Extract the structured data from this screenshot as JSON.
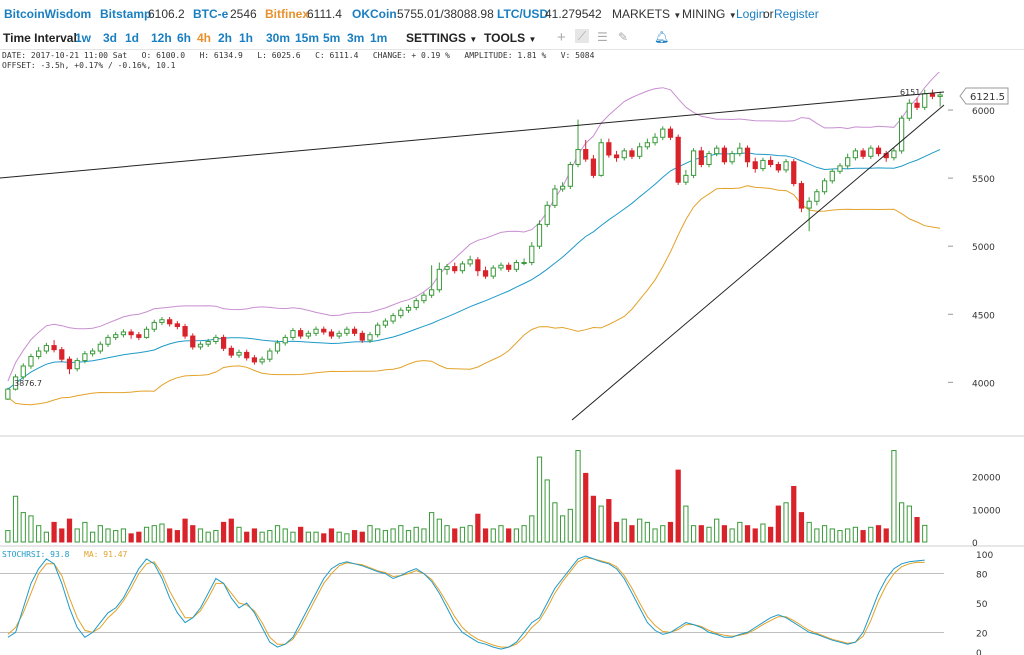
{
  "topbar": {
    "logo": "BitcoinWisdom",
    "markets": [
      {
        "name": "Bitstamp",
        "value": "6106.2",
        "highlight": false
      },
      {
        "name": "BTC-e",
        "value": "2546",
        "highlight": false
      },
      {
        "name": "Bitfinex",
        "value": "6111.4",
        "highlight": true
      },
      {
        "name": "OKCoin",
        "value": "5755.01/38088.98",
        "highlight": false
      },
      {
        "name": "LTC/USD",
        "value": "41.279542",
        "highlight": false
      }
    ],
    "markets_menu": "MARKETS",
    "mining_menu": "MINING",
    "login": "Login",
    "or": "or",
    "register": "Register"
  },
  "toolbar": {
    "label": "Time Interval:",
    "intervals": [
      "1w",
      "3d",
      "1d",
      "12h",
      "6h",
      "4h",
      "2h",
      "1h",
      "30m",
      "15m",
      "5m",
      "3m",
      "1m"
    ],
    "active_interval": "4h",
    "settings": "SETTINGS",
    "tools": "TOOLS",
    "icons": [
      "crosshair-icon",
      "line-tool-icon",
      "fib-icon",
      "brush-icon",
      "alarm-icon"
    ]
  },
  "info": {
    "line1": "DATE: 2017-10-21 11:00 Sat   O: 6100.0   H: 6134.9   L: 6025.6   C: 6111.4   CHANGE: + 0.19 %   AMPLITUDE: 1.81 %   V: 5084",
    "line2": "OFFSET: -3.5h, +0.17% / -0.16%, 10.1"
  },
  "colors": {
    "up": "#3a9a3a",
    "down": "#d9232b",
    "mid": "#1e9ac8",
    "upper": "#c88fd0",
    "lower": "#e3a22a",
    "stoch": "#1e9ac8",
    "ma": "#e3a22a"
  },
  "price_axis": {
    "ticks": [
      "6000",
      "5500",
      "5000",
      "4500",
      "4000"
    ],
    "current": "6121.5",
    "high_label": "6151",
    "low_label": "3876.7"
  },
  "volume_axis": {
    "ticks": [
      "20000",
      "10000",
      "0"
    ]
  },
  "stoch_axis": {
    "ticks": [
      "100",
      "80",
      "50",
      "20",
      "0"
    ]
  },
  "stoch_labels": {
    "stochrsi": "STOCHRSI: 93.8",
    "ma": "MA: 91.47"
  },
  "chart_data": {
    "type": "candlestick",
    "price_range": [
      3650,
      6250
    ],
    "candles": [
      [
        3877,
        3950,
        3960,
        3870
      ],
      [
        3950,
        4040,
        4060,
        3940
      ],
      [
        4040,
        4120,
        4140,
        4020
      ],
      [
        4120,
        4190,
        4210,
        4100
      ],
      [
        4190,
        4230,
        4260,
        4170
      ],
      [
        4230,
        4270,
        4290,
        4210
      ],
      [
        4270,
        4240,
        4310,
        4220
      ],
      [
        4240,
        4170,
        4260,
        4150
      ],
      [
        4170,
        4100,
        4190,
        4060
      ],
      [
        4100,
        4160,
        4180,
        4080
      ],
      [
        4160,
        4210,
        4230,
        4140
      ],
      [
        4210,
        4230,
        4250,
        4190
      ],
      [
        4230,
        4280,
        4300,
        4210
      ],
      [
        4280,
        4330,
        4350,
        4260
      ],
      [
        4330,
        4350,
        4370,
        4310
      ],
      [
        4350,
        4370,
        4390,
        4330
      ],
      [
        4370,
        4350,
        4390,
        4320
      ],
      [
        4350,
        4330,
        4370,
        4310
      ],
      [
        4330,
        4390,
        4410,
        4320
      ],
      [
        4390,
        4440,
        4460,
        4370
      ],
      [
        4440,
        4460,
        4480,
        4420
      ],
      [
        4460,
        4430,
        4480,
        4410
      ],
      [
        4430,
        4410,
        4450,
        4390
      ],
      [
        4410,
        4340,
        4430,
        4320
      ],
      [
        4340,
        4260,
        4360,
        4240
      ],
      [
        4260,
        4280,
        4300,
        4240
      ],
      [
        4280,
        4300,
        4320,
        4260
      ],
      [
        4300,
        4330,
        4350,
        4280
      ],
      [
        4330,
        4250,
        4350,
        4230
      ],
      [
        4250,
        4200,
        4270,
        4180
      ],
      [
        4200,
        4220,
        4240,
        4180
      ],
      [
        4220,
        4180,
        4240,
        4160
      ],
      [
        4180,
        4150,
        4200,
        4130
      ],
      [
        4150,
        4170,
        4190,
        4130
      ],
      [
        4170,
        4230,
        4250,
        4150
      ],
      [
        4230,
        4290,
        4310,
        4210
      ],
      [
        4290,
        4330,
        4350,
        4270
      ],
      [
        4330,
        4380,
        4400,
        4310
      ],
      [
        4380,
        4340,
        4400,
        4320
      ],
      [
        4340,
        4360,
        4380,
        4320
      ],
      [
        4360,
        4390,
        4410,
        4340
      ],
      [
        4390,
        4370,
        4410,
        4350
      ],
      [
        4370,
        4340,
        4390,
        4320
      ],
      [
        4340,
        4360,
        4380,
        4320
      ],
      [
        4360,
        4390,
        4410,
        4340
      ],
      [
        4390,
        4360,
        4410,
        4340
      ],
      [
        4360,
        4310,
        4380,
        4290
      ],
      [
        4310,
        4350,
        4370,
        4290
      ],
      [
        4350,
        4420,
        4440,
        4330
      ],
      [
        4420,
        4450,
        4470,
        4400
      ],
      [
        4450,
        4490,
        4510,
        4430
      ],
      [
        4490,
        4530,
        4550,
        4470
      ],
      [
        4530,
        4550,
        4570,
        4510
      ],
      [
        4550,
        4600,
        4620,
        4530
      ],
      [
        4600,
        4640,
        4660,
        4580
      ],
      [
        4640,
        4680,
        4860,
        4620
      ],
      [
        4680,
        4830,
        4880,
        4660
      ],
      [
        4830,
        4850,
        4870,
        4790
      ],
      [
        4850,
        4820,
        4880,
        4800
      ],
      [
        4820,
        4870,
        4890,
        4800
      ],
      [
        4870,
        4900,
        4930,
        4850
      ],
      [
        4900,
        4820,
        4920,
        4780
      ],
      [
        4820,
        4780,
        4850,
        4760
      ],
      [
        4780,
        4840,
        4860,
        4760
      ],
      [
        4840,
        4860,
        4880,
        4820
      ],
      [
        4860,
        4830,
        4880,
        4810
      ],
      [
        4830,
        4880,
        4900,
        4810
      ],
      [
        4880,
        4880,
        4910,
        4860
      ],
      [
        4880,
        5000,
        5030,
        4860
      ],
      [
        5000,
        5160,
        5190,
        4980
      ],
      [
        5160,
        5300,
        5330,
        5140
      ],
      [
        5300,
        5420,
        5450,
        5280
      ],
      [
        5420,
        5440,
        5470,
        5400
      ],
      [
        5440,
        5600,
        5620,
        5420
      ],
      [
        5600,
        5710,
        5930,
        5580
      ],
      [
        5710,
        5640,
        5780,
        5620
      ],
      [
        5640,
        5520,
        5670,
        5500
      ],
      [
        5520,
        5760,
        5790,
        5510
      ],
      [
        5760,
        5670,
        5790,
        5650
      ],
      [
        5670,
        5650,
        5700,
        5620
      ],
      [
        5650,
        5700,
        5720,
        5630
      ],
      [
        5700,
        5660,
        5720,
        5640
      ],
      [
        5660,
        5730,
        5760,
        5640
      ],
      [
        5730,
        5760,
        5790,
        5710
      ],
      [
        5760,
        5800,
        5830,
        5740
      ],
      [
        5800,
        5860,
        5880,
        5780
      ],
      [
        5860,
        5800,
        5880,
        5780
      ],
      [
        5800,
        5470,
        5820,
        5450
      ],
      [
        5470,
        5520,
        5560,
        5450
      ],
      [
        5520,
        5700,
        5720,
        5500
      ],
      [
        5700,
        5600,
        5730,
        5580
      ],
      [
        5600,
        5680,
        5700,
        5580
      ],
      [
        5680,
        5720,
        5740,
        5660
      ],
      [
        5720,
        5620,
        5740,
        5600
      ],
      [
        5620,
        5680,
        5700,
        5600
      ],
      [
        5680,
        5720,
        5760,
        5660
      ],
      [
        5720,
        5620,
        5740,
        5580
      ],
      [
        5620,
        5570,
        5650,
        5540
      ],
      [
        5570,
        5630,
        5650,
        5550
      ],
      [
        5630,
        5600,
        5660,
        5580
      ],
      [
        5600,
        5560,
        5620,
        5540
      ],
      [
        5560,
        5620,
        5640,
        5540
      ],
      [
        5620,
        5460,
        5640,
        5440
      ],
      [
        5460,
        5280,
        5480,
        5250
      ],
      [
        5280,
        5330,
        5360,
        5110
      ],
      [
        5330,
        5400,
        5420,
        5300
      ],
      [
        5400,
        5480,
        5500,
        5380
      ],
      [
        5480,
        5550,
        5570,
        5460
      ],
      [
        5550,
        5590,
        5610,
        5530
      ],
      [
        5590,
        5650,
        5680,
        5570
      ],
      [
        5650,
        5700,
        5720,
        5630
      ],
      [
        5700,
        5660,
        5720,
        5640
      ],
      [
        5660,
        5720,
        5740,
        5640
      ],
      [
        5720,
        5680,
        5740,
        5660
      ],
      [
        5680,
        5650,
        5700,
        5620
      ],
      [
        5650,
        5700,
        5720,
        5630
      ],
      [
        5700,
        5940,
        5960,
        5680
      ],
      [
        5940,
        6050,
        6080,
        5920
      ],
      [
        6050,
        6020,
        6090,
        6000
      ],
      [
        6020,
        6120,
        6150,
        6000
      ],
      [
        6120,
        6101,
        6151,
        6080
      ],
      [
        6100,
        6111,
        6135,
        6026
      ]
    ],
    "volumes": [
      3500,
      14000,
      9000,
      8000,
      5000,
      3000,
      6000,
      4000,
      7000,
      4000,
      6000,
      3000,
      5000,
      4000,
      3500,
      4000,
      2500,
      3000,
      4500,
      5000,
      5500,
      4000,
      3500,
      7000,
      5000,
      4000,
      3000,
      3500,
      6000,
      7000,
      4500,
      3000,
      4000,
      3000,
      3500,
      5000,
      4000,
      3000,
      4500,
      3000,
      3000,
      2500,
      4000,
      3000,
      2500,
      3500,
      3000,
      5000,
      4000,
      3500,
      4000,
      5000,
      3500,
      4500,
      4000,
      9000,
      7000,
      5000,
      4000,
      4500,
      5000,
      8500,
      4000,
      4000,
      5000,
      4000,
      4000,
      5000,
      8000,
      26000,
      19000,
      12000,
      8000,
      10000,
      28000,
      21000,
      14000,
      11000,
      13000,
      6000,
      7000,
      5000,
      7000,
      6000,
      4000,
      5000,
      6000,
      22000,
      11000,
      5000,
      5000,
      4500,
      7000,
      5000,
      4000,
      6000,
      5000,
      4000,
      5500,
      4500,
      11000,
      12000,
      17000,
      9000,
      6000,
      4000,
      5000,
      4000,
      3500,
      4000,
      4500,
      3500,
      4500,
      5000,
      4000,
      28000,
      12000,
      11000,
      7500,
      5084
    ],
    "stochrsi": [
      15,
      20,
      45,
      70,
      85,
      95,
      90,
      70,
      45,
      25,
      15,
      20,
      30,
      40,
      45,
      55,
      70,
      85,
      95,
      90,
      75,
      55,
      40,
      30,
      35,
      45,
      60,
      75,
      70,
      55,
      45,
      50,
      40,
      25,
      10,
      5,
      8,
      15,
      30,
      45,
      60,
      75,
      85,
      90,
      92,
      90,
      88,
      85,
      82,
      80,
      75,
      78,
      82,
      85,
      80,
      72,
      60,
      45,
      30,
      20,
      15,
      10,
      8,
      5,
      3,
      5,
      10,
      20,
      30,
      35,
      50,
      65,
      75,
      85,
      95,
      98,
      95,
      92,
      90,
      85,
      75,
      60,
      45,
      30,
      22,
      18,
      20,
      25,
      30,
      28,
      25,
      20,
      18,
      15,
      15,
      18,
      20,
      25,
      30,
      35,
      38,
      35,
      30,
      25,
      20,
      18,
      15,
      12,
      10,
      8,
      10,
      20,
      40,
      60,
      75,
      85,
      90,
      92,
      93,
      93.8
    ],
    "stoch_ma": [
      18,
      25,
      40,
      60,
      80,
      90,
      90,
      78,
      55,
      35,
      22,
      20,
      25,
      35,
      42,
      52,
      65,
      80,
      90,
      92,
      80,
      62,
      48,
      35,
      35,
      42,
      55,
      70,
      70,
      60,
      50,
      48,
      42,
      30,
      15,
      8,
      8,
      13,
      25,
      40,
      55,
      70,
      80,
      88,
      91,
      90,
      89,
      86,
      83,
      81,
      77,
      78,
      80,
      83,
      80,
      74,
      63,
      50,
      36,
      25,
      18,
      13,
      10,
      7,
      5,
      5,
      8,
      15,
      25,
      32,
      45,
      60,
      72,
      82,
      92,
      96,
      95,
      93,
      91,
      87,
      78,
      65,
      50,
      36,
      27,
      21,
      20,
      23,
      28,
      28,
      26,
      22,
      19,
      17,
      16,
      17,
      19,
      23,
      28,
      32,
      36,
      36,
      32,
      27,
      22,
      19,
      16,
      13,
      11,
      9,
      10,
      16,
      32,
      52,
      68,
      80,
      87,
      90,
      91.5,
      91.47
    ]
  }
}
